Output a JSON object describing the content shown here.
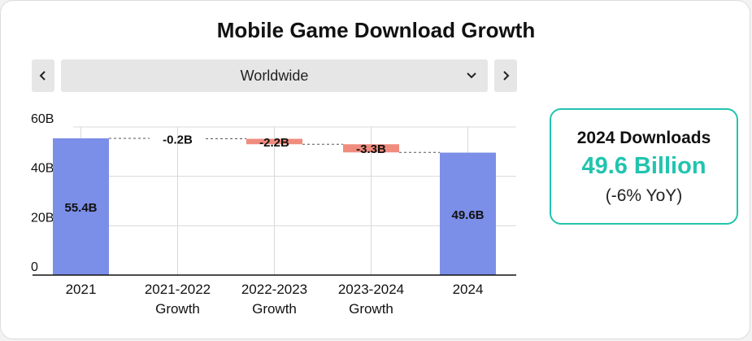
{
  "title": "Mobile Game Download Growth",
  "region_selector": {
    "selected": "Worldwide"
  },
  "kpi": {
    "label": "2024 Downloads",
    "value": "49.6 Billion",
    "change": "(-6% YoY)",
    "accent_color": "#22c4ae"
  },
  "icons": {
    "prev": "chevron-left-icon",
    "next": "chevron-right-icon",
    "dropdown": "chevron-down-icon"
  },
  "colors": {
    "total_bar": "#7b8ee8",
    "decrease_bar": "#f08c7e",
    "connector": "#555555",
    "grid": "#d9d9d9"
  },
  "chart_data": {
    "type": "waterfall",
    "title": "",
    "xlabel": "",
    "ylabel": "",
    "ylim": [
      0,
      60
    ],
    "yticks": [
      "0",
      "20B",
      "40B",
      "60B"
    ],
    "ytick_values": [
      0,
      20,
      40,
      60
    ],
    "grid": true,
    "categories": [
      [
        "2021"
      ],
      [
        "2021-2022",
        "Growth"
      ],
      [
        "2022-2023",
        "Growth"
      ],
      [
        "2023-2024",
        "Growth"
      ],
      [
        "2024"
      ]
    ],
    "values": [
      55.4,
      -0.2,
      -2.2,
      -3.3,
      49.6
    ],
    "kinds": [
      "total",
      "delta",
      "delta",
      "delta",
      "total"
    ],
    "labels": [
      "55.4B",
      "-0.2B",
      "-2.2B",
      "-3.3B",
      "49.6B"
    ]
  }
}
